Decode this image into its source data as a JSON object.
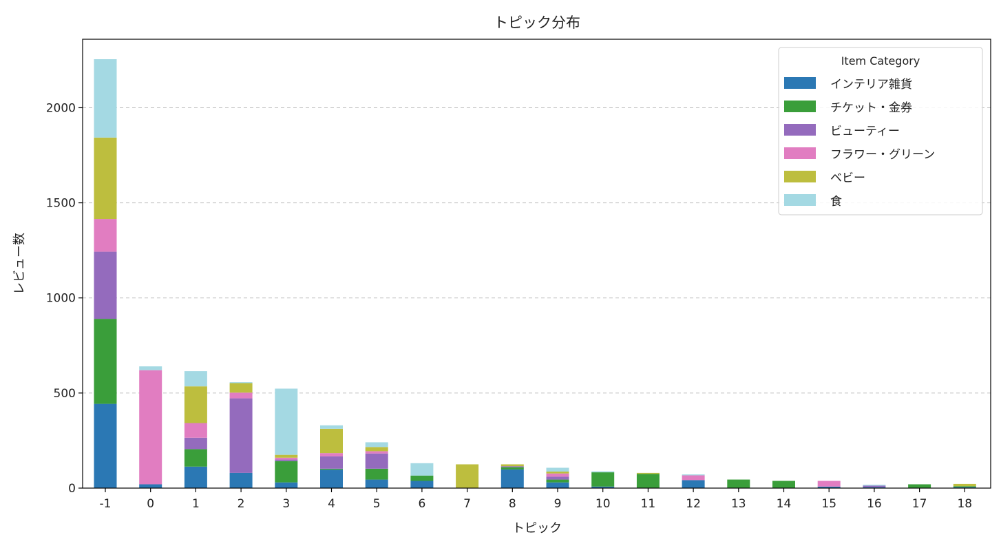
{
  "chart_data": {
    "type": "bar",
    "stacked": true,
    "title": "トピック分布",
    "xlabel": "トピック",
    "ylabel": "レビュー数",
    "ylim": [
      0,
      2360
    ],
    "yticks": [
      0,
      500,
      1000,
      1500,
      2000
    ],
    "grid": "y-dashed",
    "legend": {
      "title": "Item Category",
      "placement": "top-right"
    },
    "categories": [
      "-1",
      "0",
      "1",
      "2",
      "3",
      "4",
      "5",
      "6",
      "7",
      "8",
      "9",
      "10",
      "11",
      "12",
      "13",
      "14",
      "15",
      "16",
      "17",
      "18"
    ],
    "series": [
      {
        "name": "インテリア雑貨",
        "color": "#2b78b4",
        "values": [
          443,
          20,
          113,
          80,
          30,
          97,
          45,
          38,
          0,
          98,
          30,
          8,
          0,
          42,
          0,
          0,
          8,
          5,
          0,
          5
        ]
      },
      {
        "name": "チケット・金券",
        "color": "#3a9e3a",
        "values": [
          447,
          0,
          92,
          0,
          112,
          5,
          57,
          28,
          0,
          12,
          15,
          75,
          75,
          0,
          45,
          38,
          0,
          0,
          20,
          5
        ]
      },
      {
        "name": "ビューティー",
        "color": "#946bbd",
        "values": [
          353,
          0,
          60,
          392,
          8,
          65,
          80,
          0,
          0,
          5,
          15,
          0,
          0,
          0,
          0,
          0,
          0,
          8,
          0,
          0
        ]
      },
      {
        "name": "フラワー・グリーン",
        "color": "#e17dc1",
        "values": [
          172,
          600,
          77,
          30,
          10,
          17,
          12,
          0,
          0,
          0,
          17,
          0,
          0,
          25,
          0,
          0,
          30,
          0,
          0,
          0
        ]
      },
      {
        "name": "ベビー",
        "color": "#bdbe3e",
        "values": [
          428,
          0,
          193,
          50,
          15,
          128,
          22,
          0,
          125,
          10,
          10,
          0,
          5,
          0,
          0,
          0,
          0,
          0,
          0,
          12
        ]
      },
      {
        "name": "食",
        "color": "#a4d9e3",
        "values": [
          412,
          20,
          80,
          5,
          348,
          18,
          25,
          65,
          0,
          0,
          20,
          5,
          0,
          5,
          0,
          0,
          0,
          5,
          0,
          0
        ]
      }
    ]
  }
}
